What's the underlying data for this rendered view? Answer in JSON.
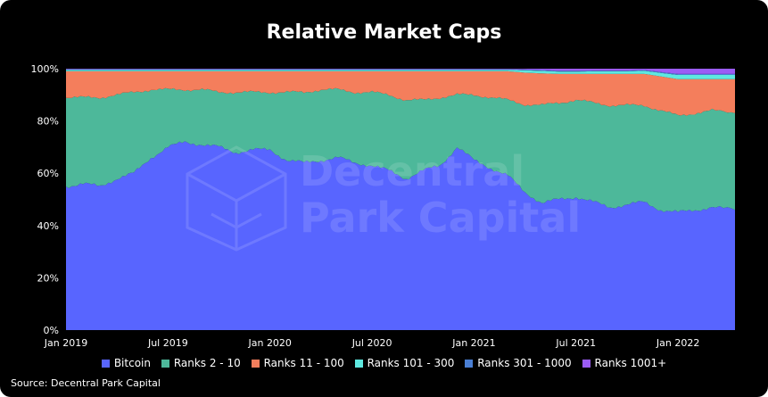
{
  "title": "Relative Market Caps",
  "source": "Source: Decentral Park Capital",
  "watermark": {
    "line1": "Decentral",
    "line2": "Park Capital"
  },
  "colors": {
    "background": "#000000",
    "bitcoin": "#5865FF",
    "ranks_2_10": "#4DB89A",
    "ranks_11_100": "#F47E5C",
    "ranks_101_300": "#5EE8E0",
    "ranks_301_1000": "#4A7FD4",
    "ranks_1001_plus": "#9B5CF6"
  },
  "chart_data": {
    "type": "area",
    "stacked": true,
    "title": "Relative Market Caps",
    "xlabel": "",
    "ylabel": "",
    "x_ticks": [
      "Jan 2019",
      "Jul 2019",
      "Jan 2020",
      "Jul 2020",
      "Jan 2021",
      "Jul 2021",
      "Jan 2022"
    ],
    "y_ticks": [
      "0%",
      "20%",
      "40%",
      "60%",
      "80%",
      "100%"
    ],
    "ylim": [
      0,
      100
    ],
    "grid": false,
    "legend_position": "bottom",
    "x": [
      "2019-01",
      "2019-02",
      "2019-03",
      "2019-04",
      "2019-05",
      "2019-06",
      "2019-07",
      "2019-08",
      "2019-09",
      "2019-10",
      "2019-11",
      "2019-12",
      "2020-01",
      "2020-02",
      "2020-03",
      "2020-04",
      "2020-05",
      "2020-06",
      "2020-07",
      "2020-08",
      "2020-09",
      "2020-10",
      "2020-11",
      "2020-12",
      "2021-01",
      "2021-02",
      "2021-03",
      "2021-04",
      "2021-05",
      "2021-06",
      "2021-07",
      "2021-08",
      "2021-09",
      "2021-10",
      "2021-11",
      "2021-12",
      "2022-01",
      "2022-02",
      "2022-03",
      "2022-04"
    ],
    "series": [
      {
        "name": "Bitcoin",
        "values": [
          55,
          56,
          55,
          58,
          60,
          66,
          70,
          72,
          71,
          70,
          68,
          69,
          69,
          65,
          64,
          65,
          66,
          64,
          63,
          61,
          58,
          61,
          63,
          70,
          65,
          62,
          59,
          52,
          48,
          50,
          51,
          49,
          47,
          48,
          49,
          46,
          45,
          46,
          47,
          46
        ]
      },
      {
        "name": "Ranks 2 - 10",
        "values": [
          34,
          33,
          34,
          32,
          31,
          26,
          22,
          20,
          21,
          21,
          23,
          22,
          22,
          26,
          27,
          27,
          26,
          27,
          28,
          29,
          30,
          27,
          26,
          20,
          25,
          27,
          29,
          33,
          37,
          37,
          37,
          38,
          39,
          38,
          37,
          38,
          37,
          37,
          37,
          37
        ]
      },
      {
        "name": "Ranks 11 - 100",
        "values": [
          10,
          10,
          10,
          9,
          8,
          7,
          7,
          7,
          7,
          8,
          8,
          8,
          8,
          8,
          8,
          7,
          7,
          8,
          8,
          9,
          11,
          11,
          10,
          9,
          9,
          10,
          11,
          12,
          12,
          11,
          10,
          11,
          12,
          12,
          12,
          13,
          14,
          13,
          12,
          13
        ]
      },
      {
        "name": "Ranks 101 - 300",
        "values": [
          0.6,
          0.6,
          0.6,
          0.6,
          0.6,
          0.6,
          0.6,
          0.6,
          0.6,
          0.6,
          0.6,
          0.6,
          0.6,
          0.6,
          0.6,
          0.6,
          0.6,
          0.6,
          0.6,
          0.6,
          0.6,
          0.6,
          0.6,
          0.6,
          0.6,
          0.6,
          0.6,
          0.9,
          1.0,
          0.9,
          0.9,
          1.0,
          1.0,
          1.0,
          1.2,
          1.4,
          1.6,
          1.6,
          1.6,
          1.6
        ]
      },
      {
        "name": "Ranks 301 - 1000",
        "values": [
          0.2,
          0.2,
          0.2,
          0.2,
          0.2,
          0.2,
          0.2,
          0.2,
          0.2,
          0.2,
          0.2,
          0.2,
          0.2,
          0.2,
          0.2,
          0.2,
          0.2,
          0.2,
          0.2,
          0.2,
          0.2,
          0.2,
          0.2,
          0.2,
          0.2,
          0.2,
          0.2,
          0.3,
          0.3,
          0.3,
          0.3,
          0.3,
          0.3,
          0.3,
          0.3,
          0.3,
          0.4,
          0.4,
          0.4,
          0.4
        ]
      },
      {
        "name": "Ranks 1001+",
        "values": [
          0.2,
          0.2,
          0.2,
          0.2,
          0.2,
          0.2,
          0.2,
          0.2,
          0.2,
          0.2,
          0.2,
          0.2,
          0.2,
          0.2,
          0.2,
          0.2,
          0.2,
          0.2,
          0.2,
          0.2,
          0.2,
          0.2,
          0.2,
          0.2,
          0.2,
          0.2,
          0.2,
          0.3,
          0.5,
          0.8,
          0.8,
          0.7,
          0.7,
          0.7,
          0.5,
          1.3,
          2.0,
          2.0,
          2.0,
          2.0
        ]
      }
    ]
  },
  "legend": [
    {
      "label": "Bitcoin",
      "color": "#5865FF"
    },
    {
      "label": "Ranks 2 - 10",
      "color": "#4DB89A"
    },
    {
      "label": "Ranks 11 - 100",
      "color": "#F47E5C"
    },
    {
      "label": "Ranks 101 - 300",
      "color": "#5EE8E0"
    },
    {
      "label": "Ranks 301 - 1000",
      "color": "#4A7FD4"
    },
    {
      "label": "Ranks 1001+",
      "color": "#9B5CF6"
    }
  ]
}
